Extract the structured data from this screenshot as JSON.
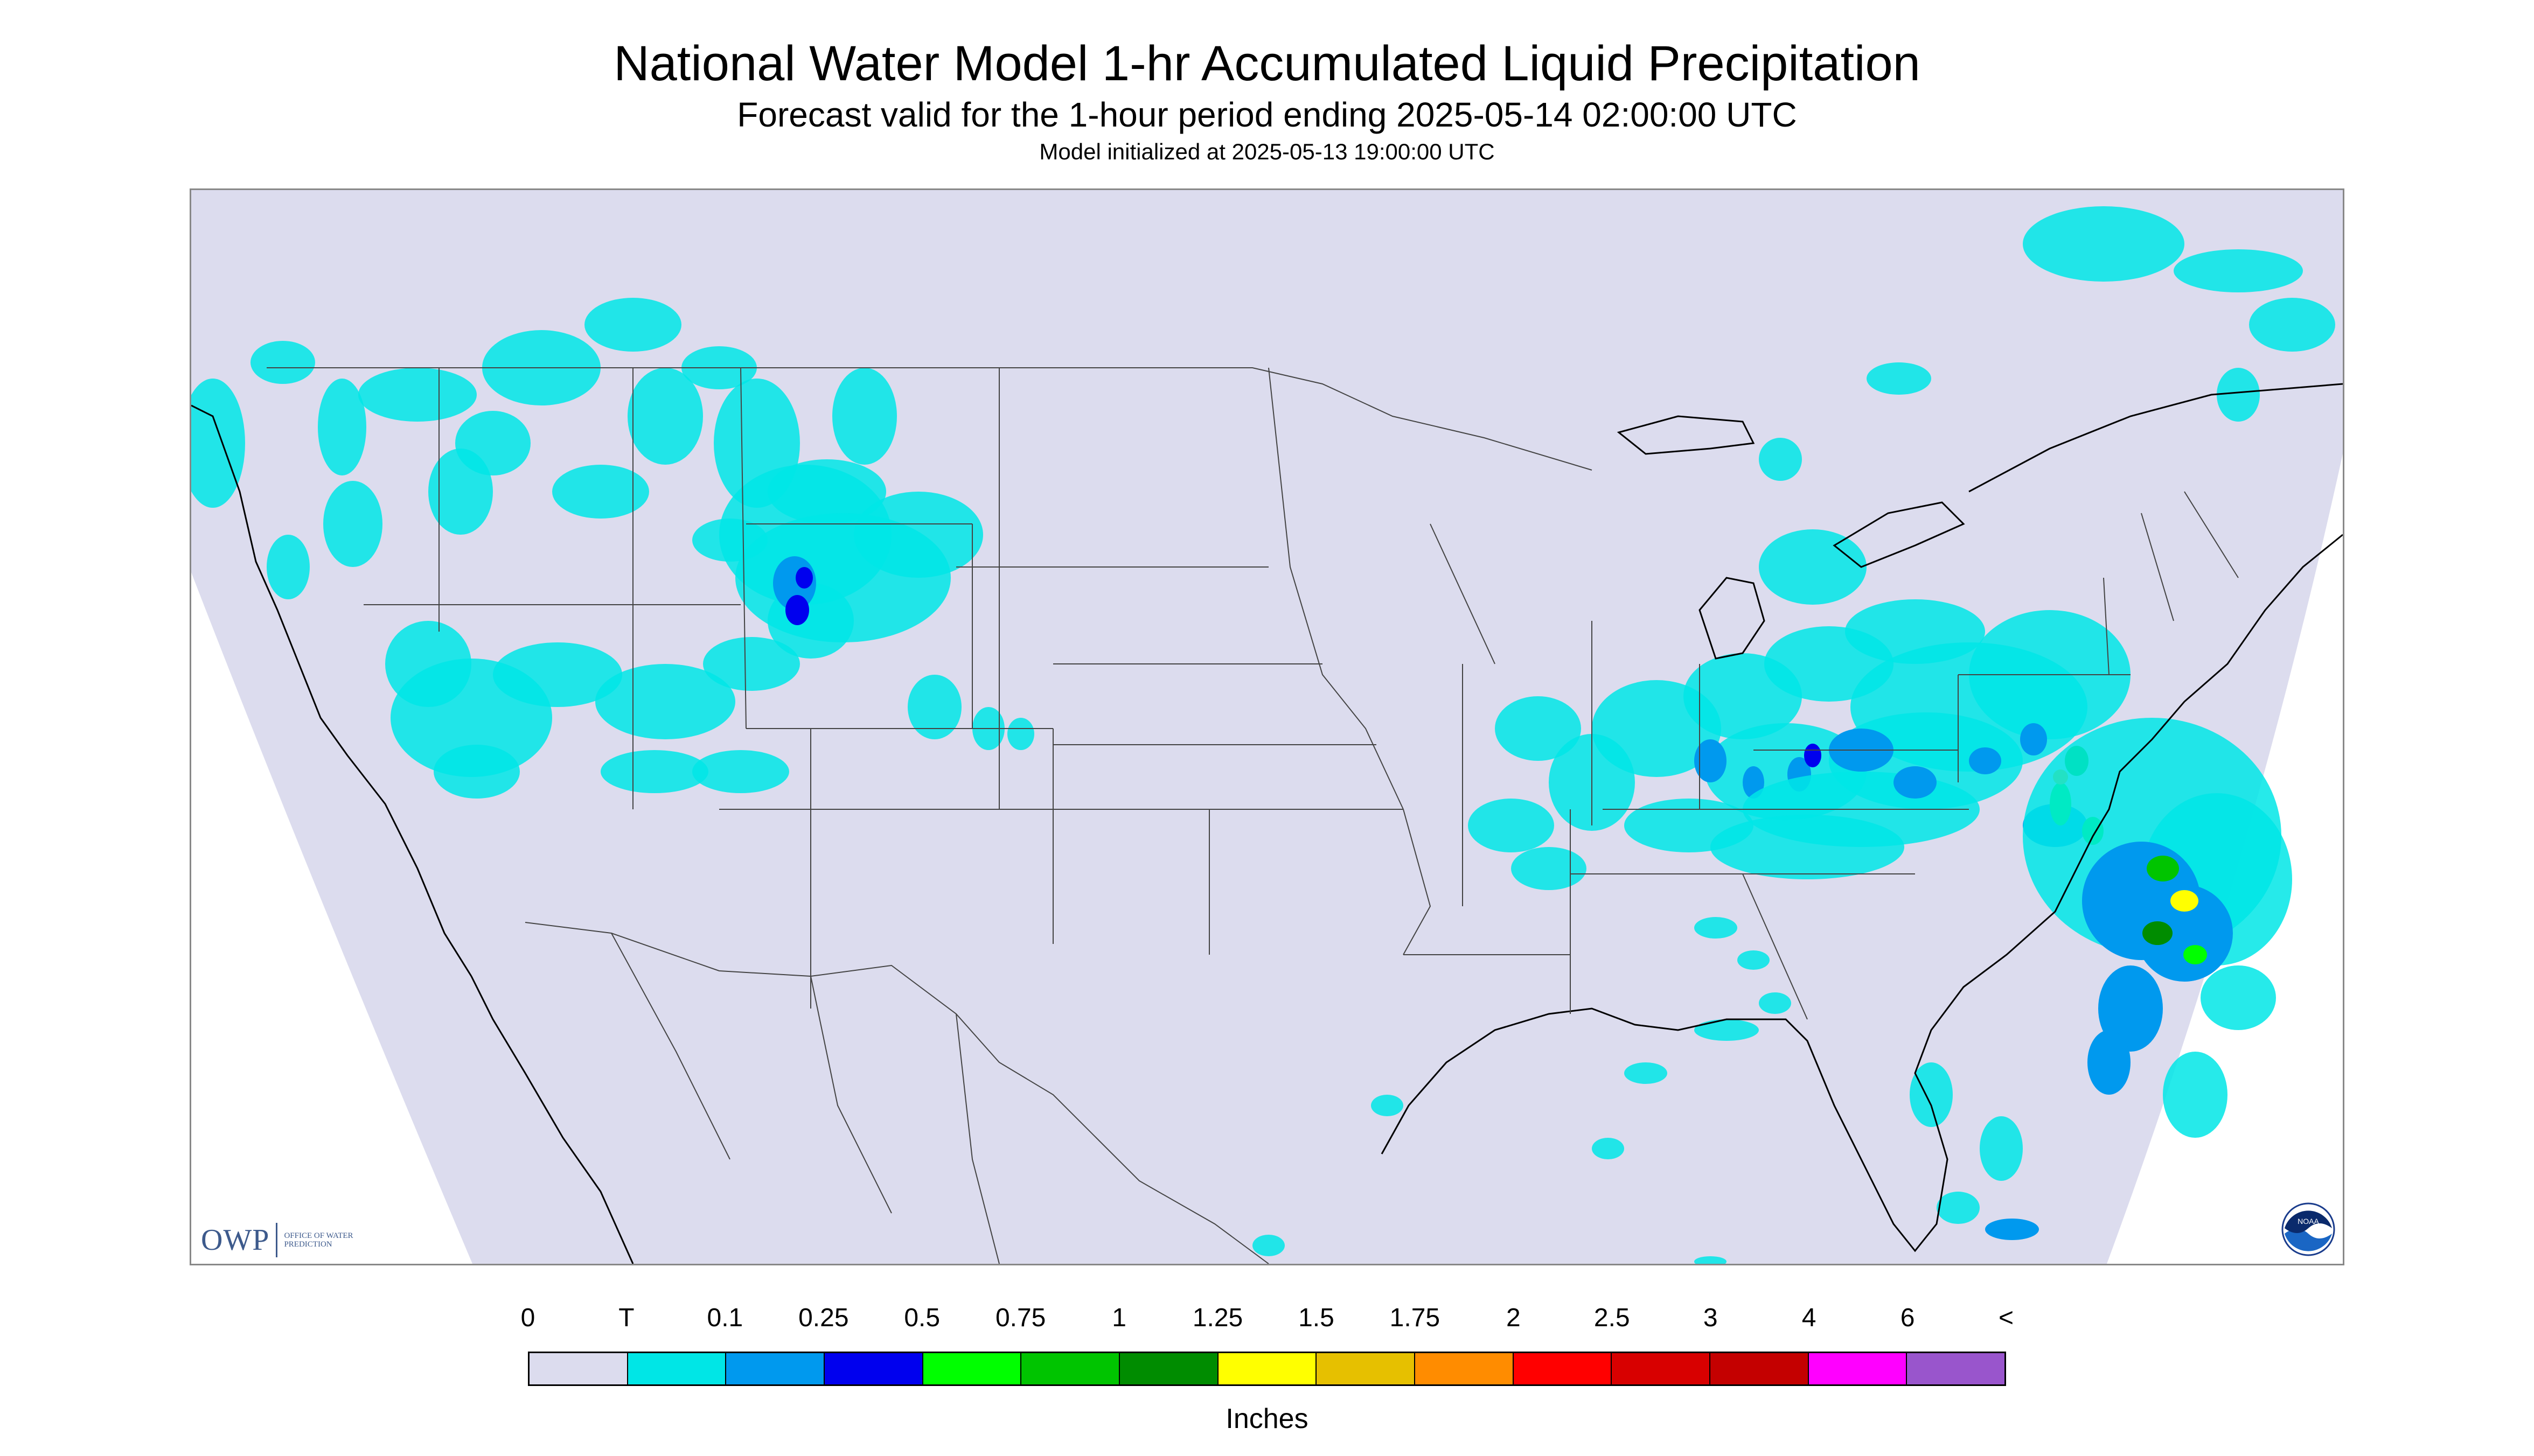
{
  "header": {
    "title": "National Water Model 1-hr Accumulated Liquid Precipitation",
    "subtitle": "Forecast valid for the 1-hour period ending 2025-05-14 02:00:00 UTC",
    "init": "Model initialized at 2025-05-13 19:00:00 UTC"
  },
  "logos": {
    "owp_mark": "OWP",
    "owp_text": "OFFICE OF WATER PREDICTION",
    "noaa_text": "NOAA"
  },
  "colors": {
    "domain_fill": "#dcdcee",
    "boundary_line": "#444444",
    "coast_line": "#000000"
  },
  "legend": {
    "units": "Inches",
    "ticks": [
      "0",
      "T",
      "0.1",
      "0.25",
      "0.5",
      "0.75",
      "1",
      "1.25",
      "1.5",
      "1.75",
      "2",
      "2.5",
      "3",
      "4",
      "6",
      "<"
    ],
    "colors": [
      "#dcdcee",
      "#00e6e6",
      "#0099ee",
      "#0000ee",
      "#00ff00",
      "#00c400",
      "#008c00",
      "#ffff00",
      "#e6c000",
      "#ff8c00",
      "#ff0000",
      "#d80000",
      "#c40000",
      "#ff00ff",
      "#9955cc"
    ]
  }
}
